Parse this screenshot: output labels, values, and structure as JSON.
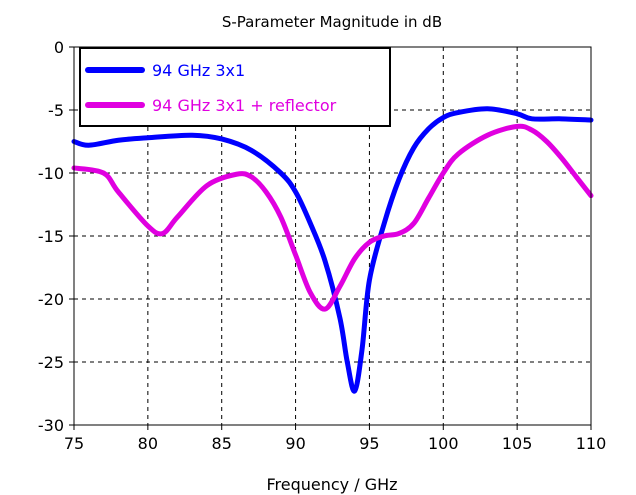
{
  "chart_data": {
    "type": "line",
    "title": "S-Parameter Magnitude in dB",
    "xlabel": "Frequency / GHz",
    "ylabel": "",
    "xlim": [
      75,
      110
    ],
    "ylim": [
      -30,
      0
    ],
    "xticks": [
      75,
      80,
      85,
      90,
      95,
      100,
      105,
      110
    ],
    "yticks": [
      0,
      -5,
      -10,
      -15,
      -20,
      -25,
      -30
    ],
    "grid": true,
    "legend_position": "top-left",
    "series": [
      {
        "name": "94 GHz 3x1",
        "color": "#0000ff",
        "x": [
          75,
          76,
          78,
          80,
          83,
          85,
          87,
          89,
          90,
          91,
          92,
          93,
          93.5,
          94,
          94.5,
          95,
          96,
          97,
          98,
          99,
          100,
          101,
          103,
          105,
          106,
          108,
          110
        ],
        "y": [
          -7.5,
          -7.8,
          -7.4,
          -7.2,
          -7.0,
          -7.3,
          -8.2,
          -10,
          -11.5,
          -14,
          -17,
          -21.5,
          -25,
          -27.3,
          -24,
          -18.5,
          -14,
          -10.5,
          -8,
          -6.5,
          -5.6,
          -5.2,
          -4.9,
          -5.3,
          -5.7,
          -5.7,
          -5.8
        ]
      },
      {
        "name": "94 GHz 3x1 + reflector",
        "color": "#e000e0",
        "x": [
          75,
          77,
          78,
          80,
          81,
          82,
          84,
          86,
          87,
          88,
          89,
          90,
          91,
          92,
          93,
          94,
          95,
          96,
          97,
          98,
          99,
          100,
          101,
          103,
          105,
          106,
          107,
          108,
          109,
          110
        ],
        "y": [
          -9.6,
          -10,
          -11.5,
          -14.2,
          -14.8,
          -13.5,
          -11,
          -10.1,
          -10.3,
          -11.5,
          -13.5,
          -16.5,
          -19.5,
          -20.8,
          -19,
          -16.8,
          -15.5,
          -15,
          -14.8,
          -14,
          -12,
          -10,
          -8.5,
          -7,
          -6.3,
          -6.6,
          -7.5,
          -8.8,
          -10.3,
          -11.8
        ]
      }
    ]
  }
}
